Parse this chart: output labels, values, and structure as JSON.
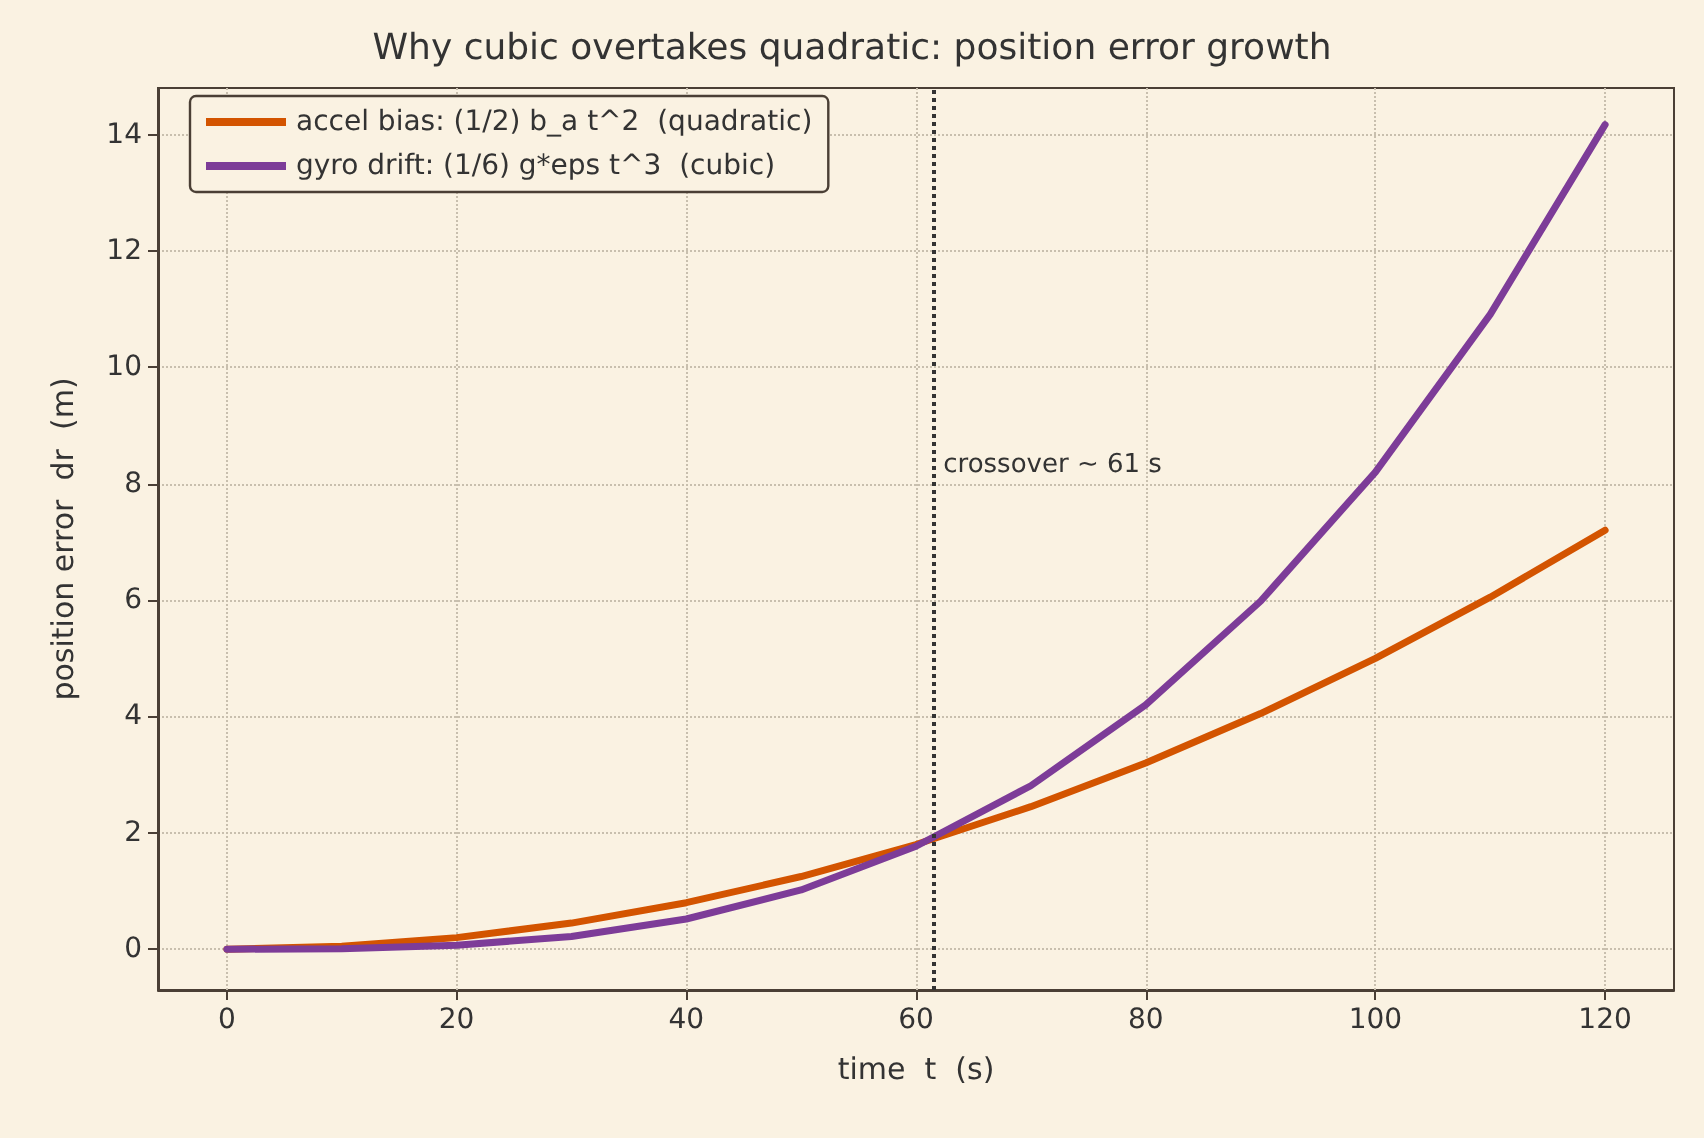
{
  "chart_data": {
    "type": "line",
    "title": "Why cubic overtakes quadratic: position error growth",
    "xlabel": "time  t  (s)",
    "ylabel": "position error  dr  (m)",
    "x": [
      0,
      10,
      20,
      30,
      40,
      50,
      60,
      70,
      80,
      90,
      100,
      110,
      120
    ],
    "series": [
      {
        "name": "accel bias: (1/2) b_a t^2  (quadratic)",
        "color": "#d35400",
        "values": [
          0,
          0.05,
          0.2,
          0.45,
          0.8,
          1.25,
          1.8,
          2.45,
          3.2,
          4.05,
          5.0,
          6.05,
          7.2
        ]
      },
      {
        "name": "gyro drift: (1/6) g*eps t^3  (cubic)",
        "color": "#7d3c98",
        "values": [
          0,
          0.01,
          0.07,
          0.22,
          0.52,
          1.02,
          1.77,
          2.81,
          4.2,
          5.98,
          8.2,
          10.91,
          14.17
        ]
      }
    ],
    "xlim": [
      -6,
      126
    ],
    "ylim": [
      -0.7,
      14.8
    ],
    "xticks": [
      0,
      20,
      40,
      60,
      80,
      100,
      120
    ],
    "yticks": [
      0,
      2,
      4,
      6,
      8,
      10,
      12,
      14
    ],
    "ref_lines": [
      {
        "axis": "x",
        "value": 61.5,
        "label": "crossover ~ 61 s",
        "color": "#333333",
        "line_style": "dotted"
      }
    ],
    "grid": true,
    "legend": "top left",
    "marker": "none",
    "line_style": "solid"
  }
}
